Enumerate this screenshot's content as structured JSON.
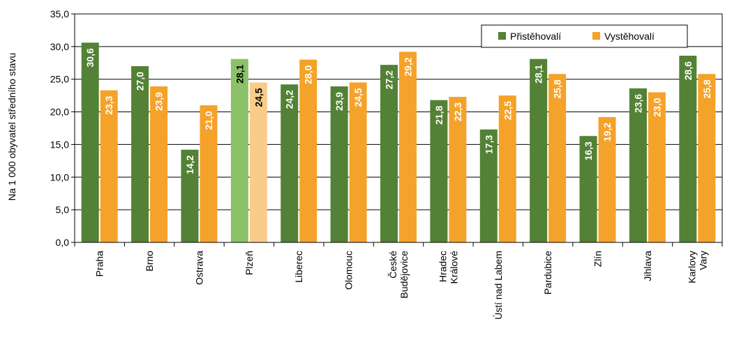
{
  "chart_data": {
    "type": "bar",
    "ylabel": "Na 1 000 obyvatel středního stavu",
    "ylim": [
      0,
      35
    ],
    "yticks": [
      "0,0",
      "5,0",
      "10,0",
      "15,0",
      "20,0",
      "25,0",
      "30,0",
      "35,0"
    ],
    "ytick_values": [
      0,
      5,
      10,
      15,
      20,
      25,
      30,
      35
    ],
    "grid": true,
    "legend_position": "top-right",
    "categories": [
      [
        "Praha"
      ],
      [
        "Brno"
      ],
      [
        "Ostrava"
      ],
      [
        "Plzeň"
      ],
      [
        "Liberec"
      ],
      [
        "Olomouc"
      ],
      [
        "České",
        "Budějovice"
      ],
      [
        "Hradec",
        "Králové"
      ],
      [
        "Ústí nad Labem"
      ],
      [
        "Pardubice"
      ],
      [
        "Zlín"
      ],
      [
        "Jihlava"
      ],
      [
        "Karlovy",
        "Vary"
      ]
    ],
    "highlight_index": 3,
    "series": [
      {
        "name": "Přistěhovalí",
        "color": "#538135",
        "highlight_color": "#8cc168",
        "values": [
          30.6,
          27.0,
          14.2,
          28.1,
          24.2,
          23.9,
          27.2,
          21.8,
          17.3,
          28.1,
          16.3,
          23.6,
          28.6
        ],
        "labels": [
          "30,6",
          "27,0",
          "14,2",
          "28,1",
          "24,2",
          "23,9",
          "27,2",
          "21,8",
          "17,3",
          "28,1",
          "16,3",
          "23,6",
          "28,6"
        ]
      },
      {
        "name": "Vystěhovalí",
        "color": "#f5a22a",
        "highlight_color": "#f9cc8a",
        "values": [
          23.3,
          23.9,
          21.0,
          24.5,
          28.0,
          24.5,
          29.2,
          22.3,
          22.5,
          25.8,
          19.2,
          23.0,
          25.8
        ],
        "labels": [
          "23,3",
          "23,9",
          "21,0",
          "24,5",
          "28,0",
          "24,5",
          "29,2",
          "22,3",
          "22,5",
          "25,8",
          "19,2",
          "23,0",
          "25,8"
        ]
      }
    ]
  }
}
